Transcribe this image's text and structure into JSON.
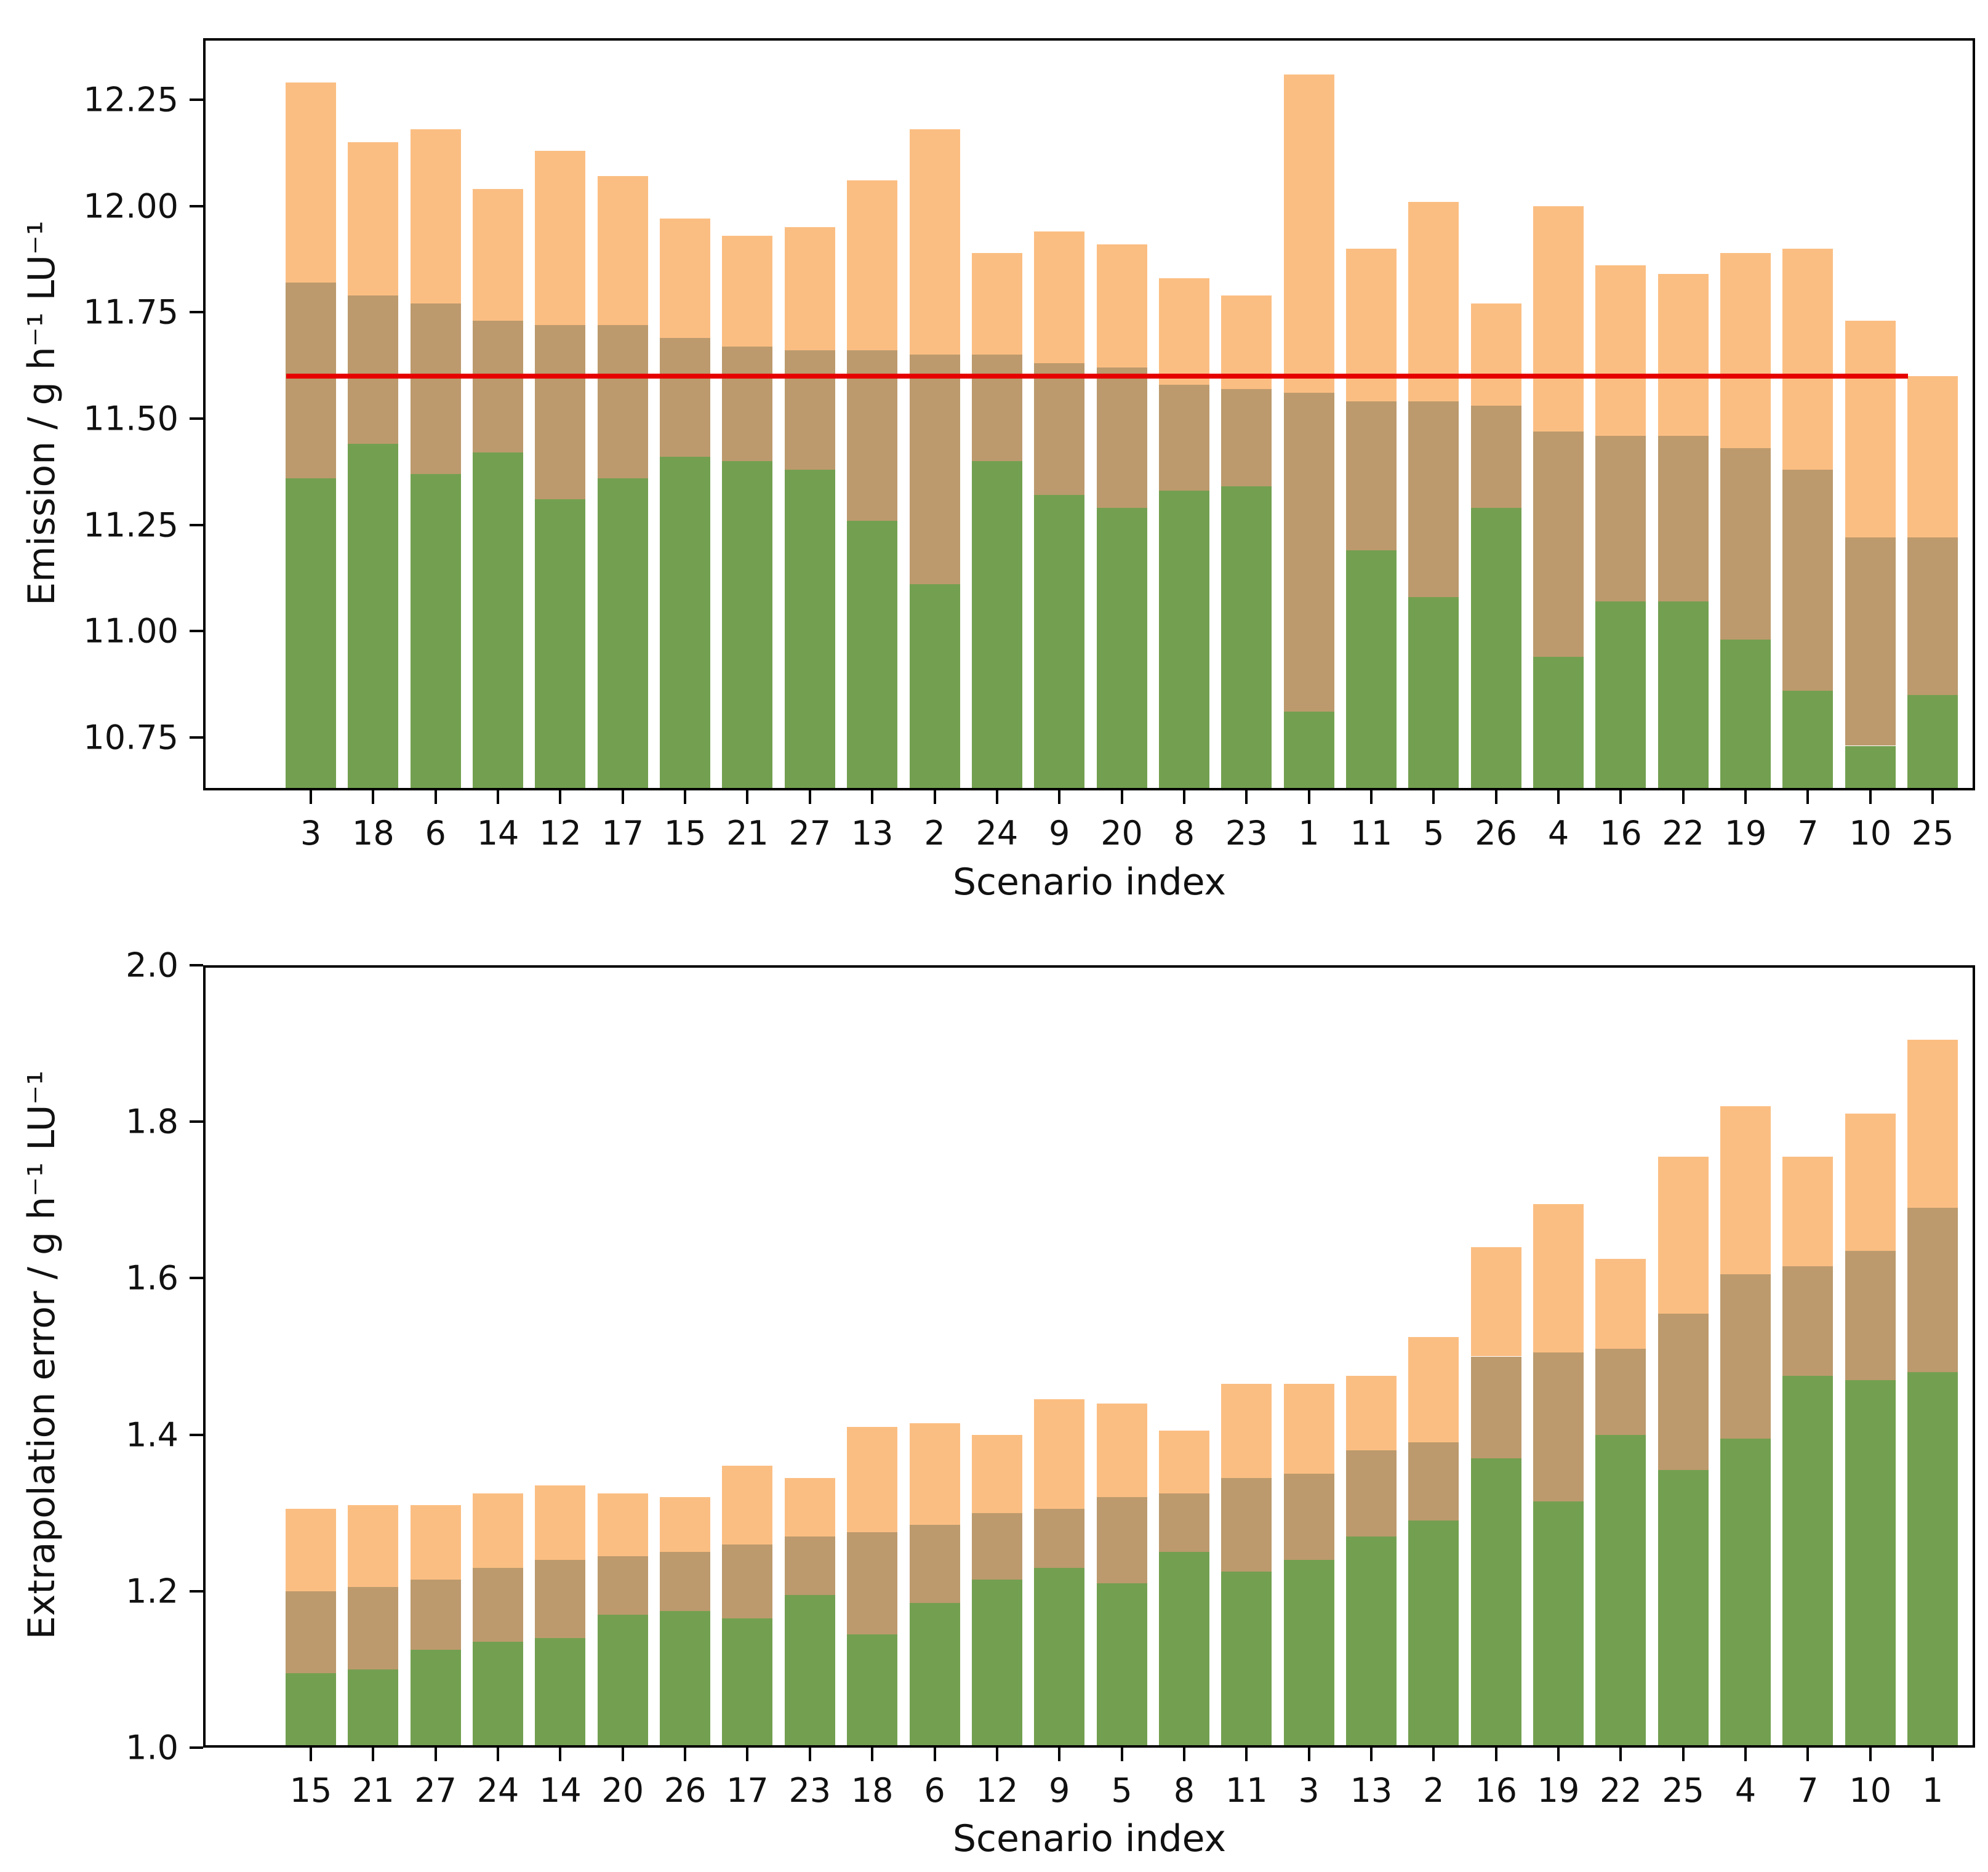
{
  "accent_colors": {
    "orange": "#fbbe82",
    "overlap_brown": "#bc9a6d",
    "green": "#73a050",
    "red_line": "#e60000",
    "axis": "#000000"
  },
  "chart_data": [
    {
      "type": "bar",
      "title": "",
      "ylabel": "Emission   /   g h⁻¹ LU⁻¹",
      "xlabel": "Scenario index",
      "legend": "none",
      "grid": false,
      "categories": [
        3,
        18,
        6,
        14,
        12,
        17,
        15,
        21,
        27,
        13,
        2,
        24,
        9,
        20,
        8,
        23,
        1,
        11,
        5,
        26,
        4,
        16,
        22,
        19,
        7,
        10,
        25
      ],
      "series": [
        {
          "name": "green_bar_top",
          "values": [
            11.36,
            11.44,
            11.37,
            11.42,
            11.31,
            11.36,
            11.41,
            11.4,
            11.38,
            11.26,
            11.11,
            11.4,
            11.32,
            11.29,
            11.33,
            11.34,
            10.81,
            11.19,
            11.08,
            11.29,
            10.94,
            11.07,
            11.07,
            10.98,
            10.86,
            10.73,
            10.85
          ]
        },
        {
          "name": "overlap_top",
          "values": [
            11.82,
            11.79,
            11.77,
            11.73,
            11.72,
            11.72,
            11.69,
            11.67,
            11.66,
            11.66,
            11.65,
            11.65,
            11.63,
            11.62,
            11.58,
            11.57,
            11.56,
            11.54,
            11.54,
            11.53,
            11.47,
            11.46,
            11.46,
            11.43,
            11.38,
            11.22,
            11.22
          ]
        },
        {
          "name": "orange_bar_top",
          "values": [
            12.29,
            12.15,
            12.18,
            12.04,
            12.13,
            12.07,
            11.97,
            11.93,
            11.95,
            12.06,
            12.18,
            11.89,
            11.94,
            11.91,
            11.83,
            11.79,
            12.31,
            11.9,
            12.01,
            11.77,
            12.0,
            11.86,
            11.84,
            11.89,
            11.9,
            11.73,
            11.6
          ]
        }
      ],
      "ylim": [
        10.625,
        12.395
      ],
      "yticks": [
        "12.25",
        "12.00",
        "11.75",
        "11.50",
        "11.25",
        "11.00",
        "10.75"
      ],
      "baseline": {
        "value": 11.6,
        "color": "#e60000"
      }
    },
    {
      "type": "bar",
      "title": "",
      "ylabel": "Extrapolation error   /   g h⁻¹ LU⁻¹",
      "xlabel": "Scenario index",
      "legend": "none",
      "grid": false,
      "categories": [
        15,
        21,
        27,
        24,
        14,
        20,
        26,
        17,
        23,
        18,
        6,
        12,
        9,
        5,
        8,
        11,
        3,
        13,
        2,
        16,
        19,
        22,
        25,
        4,
        7,
        10,
        1
      ],
      "series": [
        {
          "name": "green_bar_top",
          "values": [
            1.095,
            1.1,
            1.125,
            1.135,
            1.14,
            1.17,
            1.175,
            1.165,
            1.195,
            1.145,
            1.185,
            1.215,
            1.23,
            1.21,
            1.25,
            1.225,
            1.24,
            1.27,
            1.29,
            1.37,
            1.315,
            1.4,
            1.355,
            1.395,
            1.475,
            1.47,
            1.48
          ]
        },
        {
          "name": "overlap_top",
          "values": [
            1.2,
            1.205,
            1.215,
            1.23,
            1.24,
            1.245,
            1.25,
            1.26,
            1.27,
            1.275,
            1.285,
            1.3,
            1.305,
            1.32,
            1.325,
            1.345,
            1.35,
            1.38,
            1.39,
            1.5,
            1.505,
            1.51,
            1.555,
            1.605,
            1.615,
            1.635,
            1.69
          ]
        },
        {
          "name": "orange_bar_top",
          "values": [
            1.305,
            1.31,
            1.31,
            1.325,
            1.335,
            1.325,
            1.32,
            1.36,
            1.345,
            1.41,
            1.415,
            1.4,
            1.445,
            1.44,
            1.405,
            1.465,
            1.465,
            1.475,
            1.525,
            1.64,
            1.695,
            1.625,
            1.755,
            1.82,
            1.755,
            1.81,
            1.905
          ]
        }
      ],
      "ylim": [
        1.0,
        2.0
      ],
      "yticks": [
        "2.0",
        "1.8",
        "1.6",
        "1.4",
        "1.2",
        "1.0"
      ],
      "baseline": null
    }
  ]
}
